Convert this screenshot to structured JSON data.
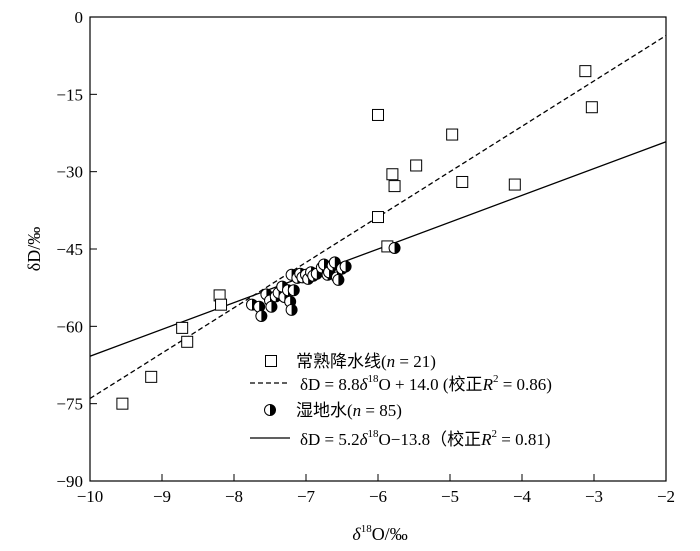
{
  "chart_data": {
    "type": "scatter",
    "xlim": [
      -10,
      -2
    ],
    "ylim": [
      -90,
      0
    ],
    "xticks": [
      -10,
      -9,
      -8,
      -7,
      -6,
      -5,
      -4,
      -3,
      -2
    ],
    "yticks": [
      0,
      -15,
      -30,
      -45,
      -60,
      -75,
      -90
    ],
    "xticklabels": [
      "−10",
      "−9",
      "−8",
      "−7",
      "−6",
      "−5",
      "−4",
      "−3",
      "−2"
    ],
    "yticklabels": [
      "0",
      "−15",
      "−30",
      "−45",
      "−60",
      "−75",
      "−90"
    ],
    "xlabel": "δ18O/‰",
    "ylabel": "δD/‰",
    "grid": false,
    "legend_position": "bottom-right",
    "series": [
      {
        "name": "常熟降水线(n = 21)",
        "marker": "open-square",
        "points": [
          [
            -9.55,
            -75.0
          ],
          [
            -9.15,
            -69.8
          ],
          [
            -8.72,
            -60.3
          ],
          [
            -8.65,
            -63.0
          ],
          [
            -8.2,
            -54.0
          ],
          [
            -8.18,
            -55.8
          ],
          [
            -6.0,
            -19.0
          ],
          [
            -6.0,
            -38.8
          ],
          [
            -5.87,
            -44.5
          ],
          [
            -5.8,
            -30.5
          ],
          [
            -5.77,
            -32.8
          ],
          [
            -5.47,
            -28.8
          ],
          [
            -4.97,
            -22.8
          ],
          [
            -4.83,
            -32.0
          ],
          [
            -4.1,
            -32.5
          ],
          [
            -3.12,
            -10.5
          ],
          [
            -3.03,
            -17.5
          ]
        ]
      },
      {
        "name": "湿地水(n = 85)",
        "marker": "half-filled-circle",
        "points": [
          [
            -7.75,
            -55.8
          ],
          [
            -7.65,
            -56.2
          ],
          [
            -7.62,
            -58.0
          ],
          [
            -7.55,
            -53.8
          ],
          [
            -7.5,
            -55.0
          ],
          [
            -7.48,
            -56.2
          ],
          [
            -7.42,
            -54.2
          ],
          [
            -7.38,
            -53.5
          ],
          [
            -7.33,
            -52.3
          ],
          [
            -7.3,
            -54.3
          ],
          [
            -7.25,
            -53.0
          ],
          [
            -7.22,
            -55.2
          ],
          [
            -7.2,
            -56.8
          ],
          [
            -7.2,
            -50.0
          ],
          [
            -7.17,
            -53.0
          ],
          [
            -7.12,
            -50.6
          ],
          [
            -7.08,
            -49.8
          ],
          [
            -7.05,
            -50.5
          ],
          [
            -7.0,
            -50.0
          ],
          [
            -6.97,
            -50.8
          ],
          [
            -6.93,
            -49.5
          ],
          [
            -6.9,
            -50.2
          ],
          [
            -6.85,
            -49.8
          ],
          [
            -6.78,
            -48.6
          ],
          [
            -6.75,
            -48.0
          ],
          [
            -6.7,
            -50.0
          ],
          [
            -6.68,
            -49.5
          ],
          [
            -6.63,
            -48.2
          ],
          [
            -6.6,
            -47.6
          ],
          [
            -6.57,
            -50.5
          ],
          [
            -6.55,
            -51.0
          ],
          [
            -6.5,
            -48.8
          ],
          [
            -6.45,
            -48.4
          ],
          [
            -5.77,
            -44.8
          ]
        ]
      }
    ],
    "fit_lines": [
      {
        "name": "δD = 8.8δ18O + 14.0 (校正R2 = 0.86)",
        "slope": 8.8,
        "intercept": 14.0,
        "style": "dashed"
      },
      {
        "name": "δD = 5.2δ18O−13.8 (校正R2 = 0.81)",
        "slope": 5.2,
        "intercept": -13.8,
        "style": "solid"
      }
    ]
  },
  "legend": {
    "precip": {
      "prefix": "常熟降水线(",
      "n": "n",
      "suffix": " = 21)"
    },
    "gmwl": {
      "lhs": "δD = 8.8",
      "delta": "δ",
      "sup": "18",
      "rhs": "O + 14.0 (校正",
      "r": "R",
      "r_sup": "2",
      "tail": " = 0.86)"
    },
    "wetland": {
      "prefix": "湿地水(",
      "n": "n",
      "suffix": " = 85)"
    },
    "lmwl": {
      "lhs": "δD = 5.2",
      "delta": "δ",
      "sup": "18",
      "rhs": "O−13.8（校正",
      "r": "R",
      "r_sup": "2",
      "tail": " = 0.81)"
    }
  },
  "axes": {
    "x_label": {
      "delta": "δ",
      "sup": "18",
      "rest": "O/‰"
    },
    "y_label": "δD/‰"
  }
}
